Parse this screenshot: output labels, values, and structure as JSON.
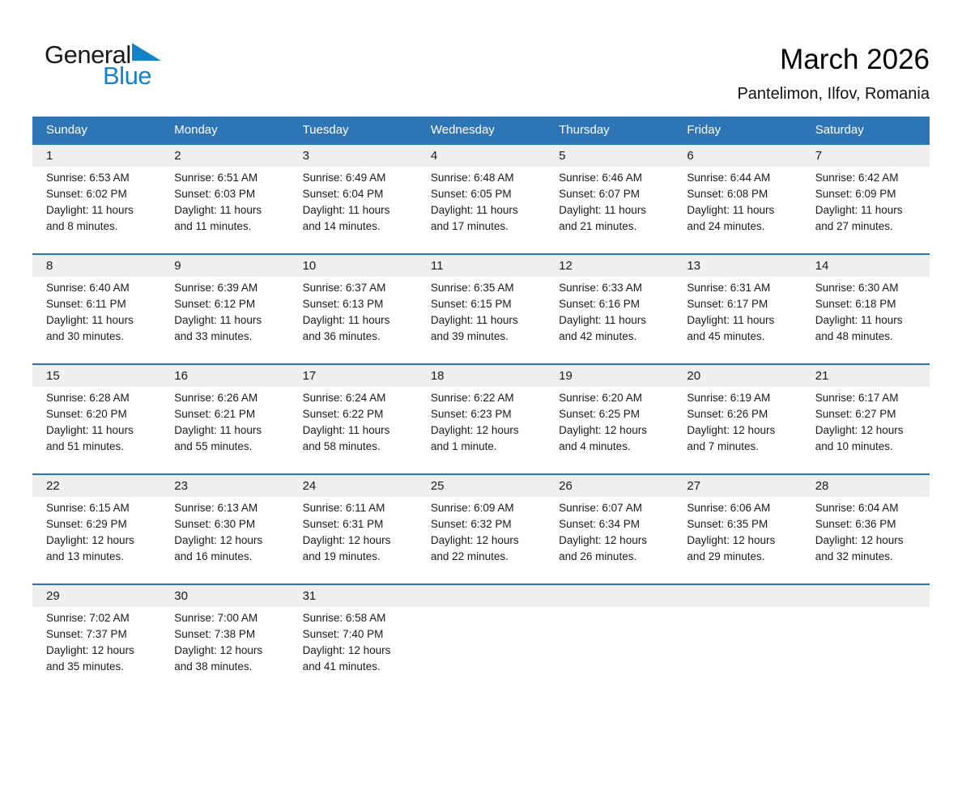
{
  "logo": {
    "part1": "General",
    "part2": "Blue",
    "blue_hex": "#1283C8"
  },
  "header": {
    "title": "March 2026",
    "location": "Pantelimon, Ilfov, Romania"
  },
  "colors": {
    "header_bg": "#2E75B6",
    "week_separator": "#2E75B6",
    "day_band_bg": "#EFEFEF",
    "text": "#1A1A1A"
  },
  "calendar": {
    "weekdays": [
      "Sunday",
      "Monday",
      "Tuesday",
      "Wednesday",
      "Thursday",
      "Friday",
      "Saturday"
    ],
    "weeks": [
      [
        {
          "day": "1",
          "sunrise": "Sunrise: 6:53 AM",
          "sunset": "Sunset: 6:02 PM",
          "daylight1": "Daylight: 11 hours",
          "daylight2": "and 8 minutes."
        },
        {
          "day": "2",
          "sunrise": "Sunrise: 6:51 AM",
          "sunset": "Sunset: 6:03 PM",
          "daylight1": "Daylight: 11 hours",
          "daylight2": "and 11 minutes."
        },
        {
          "day": "3",
          "sunrise": "Sunrise: 6:49 AM",
          "sunset": "Sunset: 6:04 PM",
          "daylight1": "Daylight: 11 hours",
          "daylight2": "and 14 minutes."
        },
        {
          "day": "4",
          "sunrise": "Sunrise: 6:48 AM",
          "sunset": "Sunset: 6:05 PM",
          "daylight1": "Daylight: 11 hours",
          "daylight2": "and 17 minutes."
        },
        {
          "day": "5",
          "sunrise": "Sunrise: 6:46 AM",
          "sunset": "Sunset: 6:07 PM",
          "daylight1": "Daylight: 11 hours",
          "daylight2": "and 21 minutes."
        },
        {
          "day": "6",
          "sunrise": "Sunrise: 6:44 AM",
          "sunset": "Sunset: 6:08 PM",
          "daylight1": "Daylight: 11 hours",
          "daylight2": "and 24 minutes."
        },
        {
          "day": "7",
          "sunrise": "Sunrise: 6:42 AM",
          "sunset": "Sunset: 6:09 PM",
          "daylight1": "Daylight: 11 hours",
          "daylight2": "and 27 minutes."
        }
      ],
      [
        {
          "day": "8",
          "sunrise": "Sunrise: 6:40 AM",
          "sunset": "Sunset: 6:11 PM",
          "daylight1": "Daylight: 11 hours",
          "daylight2": "and 30 minutes."
        },
        {
          "day": "9",
          "sunrise": "Sunrise: 6:39 AM",
          "sunset": "Sunset: 6:12 PM",
          "daylight1": "Daylight: 11 hours",
          "daylight2": "and 33 minutes."
        },
        {
          "day": "10",
          "sunrise": "Sunrise: 6:37 AM",
          "sunset": "Sunset: 6:13 PM",
          "daylight1": "Daylight: 11 hours",
          "daylight2": "and 36 minutes."
        },
        {
          "day": "11",
          "sunrise": "Sunrise: 6:35 AM",
          "sunset": "Sunset: 6:15 PM",
          "daylight1": "Daylight: 11 hours",
          "daylight2": "and 39 minutes."
        },
        {
          "day": "12",
          "sunrise": "Sunrise: 6:33 AM",
          "sunset": "Sunset: 6:16 PM",
          "daylight1": "Daylight: 11 hours",
          "daylight2": "and 42 minutes."
        },
        {
          "day": "13",
          "sunrise": "Sunrise: 6:31 AM",
          "sunset": "Sunset: 6:17 PM",
          "daylight1": "Daylight: 11 hours",
          "daylight2": "and 45 minutes."
        },
        {
          "day": "14",
          "sunrise": "Sunrise: 6:30 AM",
          "sunset": "Sunset: 6:18 PM",
          "daylight1": "Daylight: 11 hours",
          "daylight2": "and 48 minutes."
        }
      ],
      [
        {
          "day": "15",
          "sunrise": "Sunrise: 6:28 AM",
          "sunset": "Sunset: 6:20 PM",
          "daylight1": "Daylight: 11 hours",
          "daylight2": "and 51 minutes."
        },
        {
          "day": "16",
          "sunrise": "Sunrise: 6:26 AM",
          "sunset": "Sunset: 6:21 PM",
          "daylight1": "Daylight: 11 hours",
          "daylight2": "and 55 minutes."
        },
        {
          "day": "17",
          "sunrise": "Sunrise: 6:24 AM",
          "sunset": "Sunset: 6:22 PM",
          "daylight1": "Daylight: 11 hours",
          "daylight2": "and 58 minutes."
        },
        {
          "day": "18",
          "sunrise": "Sunrise: 6:22 AM",
          "sunset": "Sunset: 6:23 PM",
          "daylight1": "Daylight: 12 hours",
          "daylight2": "and 1 minute."
        },
        {
          "day": "19",
          "sunrise": "Sunrise: 6:20 AM",
          "sunset": "Sunset: 6:25 PM",
          "daylight1": "Daylight: 12 hours",
          "daylight2": "and 4 minutes."
        },
        {
          "day": "20",
          "sunrise": "Sunrise: 6:19 AM",
          "sunset": "Sunset: 6:26 PM",
          "daylight1": "Daylight: 12 hours",
          "daylight2": "and 7 minutes."
        },
        {
          "day": "21",
          "sunrise": "Sunrise: 6:17 AM",
          "sunset": "Sunset: 6:27 PM",
          "daylight1": "Daylight: 12 hours",
          "daylight2": "and 10 minutes."
        }
      ],
      [
        {
          "day": "22",
          "sunrise": "Sunrise: 6:15 AM",
          "sunset": "Sunset: 6:29 PM",
          "daylight1": "Daylight: 12 hours",
          "daylight2": "and 13 minutes."
        },
        {
          "day": "23",
          "sunrise": "Sunrise: 6:13 AM",
          "sunset": "Sunset: 6:30 PM",
          "daylight1": "Daylight: 12 hours",
          "daylight2": "and 16 minutes."
        },
        {
          "day": "24",
          "sunrise": "Sunrise: 6:11 AM",
          "sunset": "Sunset: 6:31 PM",
          "daylight1": "Daylight: 12 hours",
          "daylight2": "and 19 minutes."
        },
        {
          "day": "25",
          "sunrise": "Sunrise: 6:09 AM",
          "sunset": "Sunset: 6:32 PM",
          "daylight1": "Daylight: 12 hours",
          "daylight2": "and 22 minutes."
        },
        {
          "day": "26",
          "sunrise": "Sunrise: 6:07 AM",
          "sunset": "Sunset: 6:34 PM",
          "daylight1": "Daylight: 12 hours",
          "daylight2": "and 26 minutes."
        },
        {
          "day": "27",
          "sunrise": "Sunrise: 6:06 AM",
          "sunset": "Sunset: 6:35 PM",
          "daylight1": "Daylight: 12 hours",
          "daylight2": "and 29 minutes."
        },
        {
          "day": "28",
          "sunrise": "Sunrise: 6:04 AM",
          "sunset": "Sunset: 6:36 PM",
          "daylight1": "Daylight: 12 hours",
          "daylight2": "and 32 minutes."
        }
      ],
      [
        {
          "day": "29",
          "sunrise": "Sunrise: 7:02 AM",
          "sunset": "Sunset: 7:37 PM",
          "daylight1": "Daylight: 12 hours",
          "daylight2": "and 35 minutes."
        },
        {
          "day": "30",
          "sunrise": "Sunrise: 7:00 AM",
          "sunset": "Sunset: 7:38 PM",
          "daylight1": "Daylight: 12 hours",
          "daylight2": "and 38 minutes."
        },
        {
          "day": "31",
          "sunrise": "Sunrise: 6:58 AM",
          "sunset": "Sunset: 7:40 PM",
          "daylight1": "Daylight: 12 hours",
          "daylight2": "and 41 minutes."
        },
        {
          "day": "",
          "sunrise": "",
          "sunset": "",
          "daylight1": "",
          "daylight2": ""
        },
        {
          "day": "",
          "sunrise": "",
          "sunset": "",
          "daylight1": "",
          "daylight2": ""
        },
        {
          "day": "",
          "sunrise": "",
          "sunset": "",
          "daylight1": "",
          "daylight2": ""
        },
        {
          "day": "",
          "sunrise": "",
          "sunset": "",
          "daylight1": "",
          "daylight2": ""
        }
      ]
    ]
  }
}
